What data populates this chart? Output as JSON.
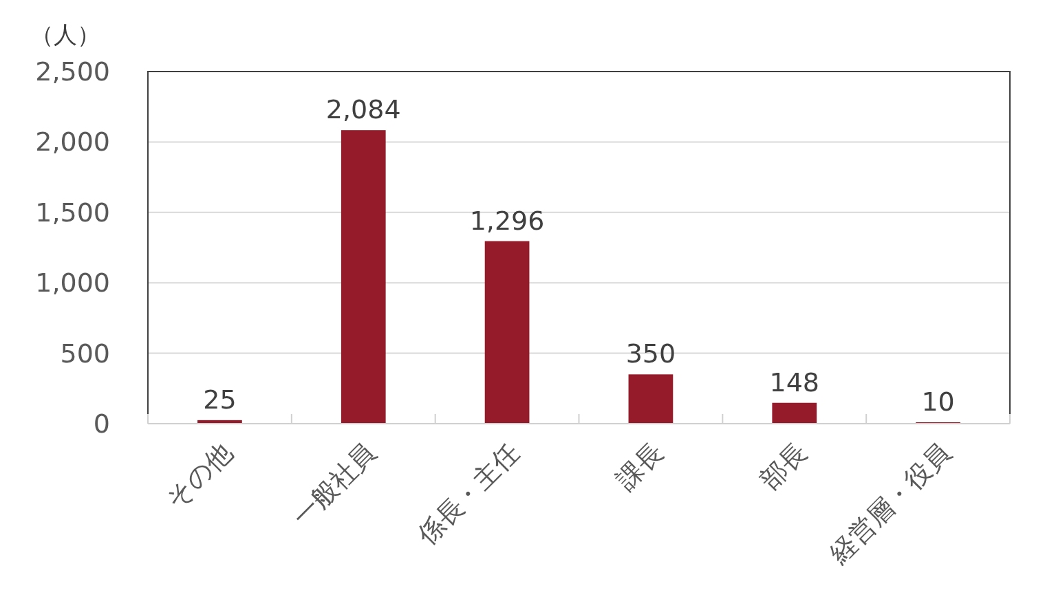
{
  "chart_data": {
    "type": "bar",
    "ylabel": "（人）",
    "categories": [
      "その他",
      "一般社員",
      "係長・主任",
      "課長",
      "部長",
      "経営層・役員"
    ],
    "values": [
      25,
      2084,
      1296,
      350,
      148,
      10
    ],
    "value_labels": [
      "25",
      "2,084",
      "1,296",
      "350",
      "148",
      "10"
    ],
    "color": "#951b2a",
    "ylim": [
      0,
      2500
    ],
    "yticks": [
      0,
      500,
      {
        "value": 1000,
        "label": "1,000"
      },
      {
        "value": 1500,
        "label": "1,500"
      },
      {
        "value": 2000,
        "label": "2,000"
      },
      {
        "value": 2500,
        "label": "2,500"
      }
    ],
    "grid": "y"
  }
}
